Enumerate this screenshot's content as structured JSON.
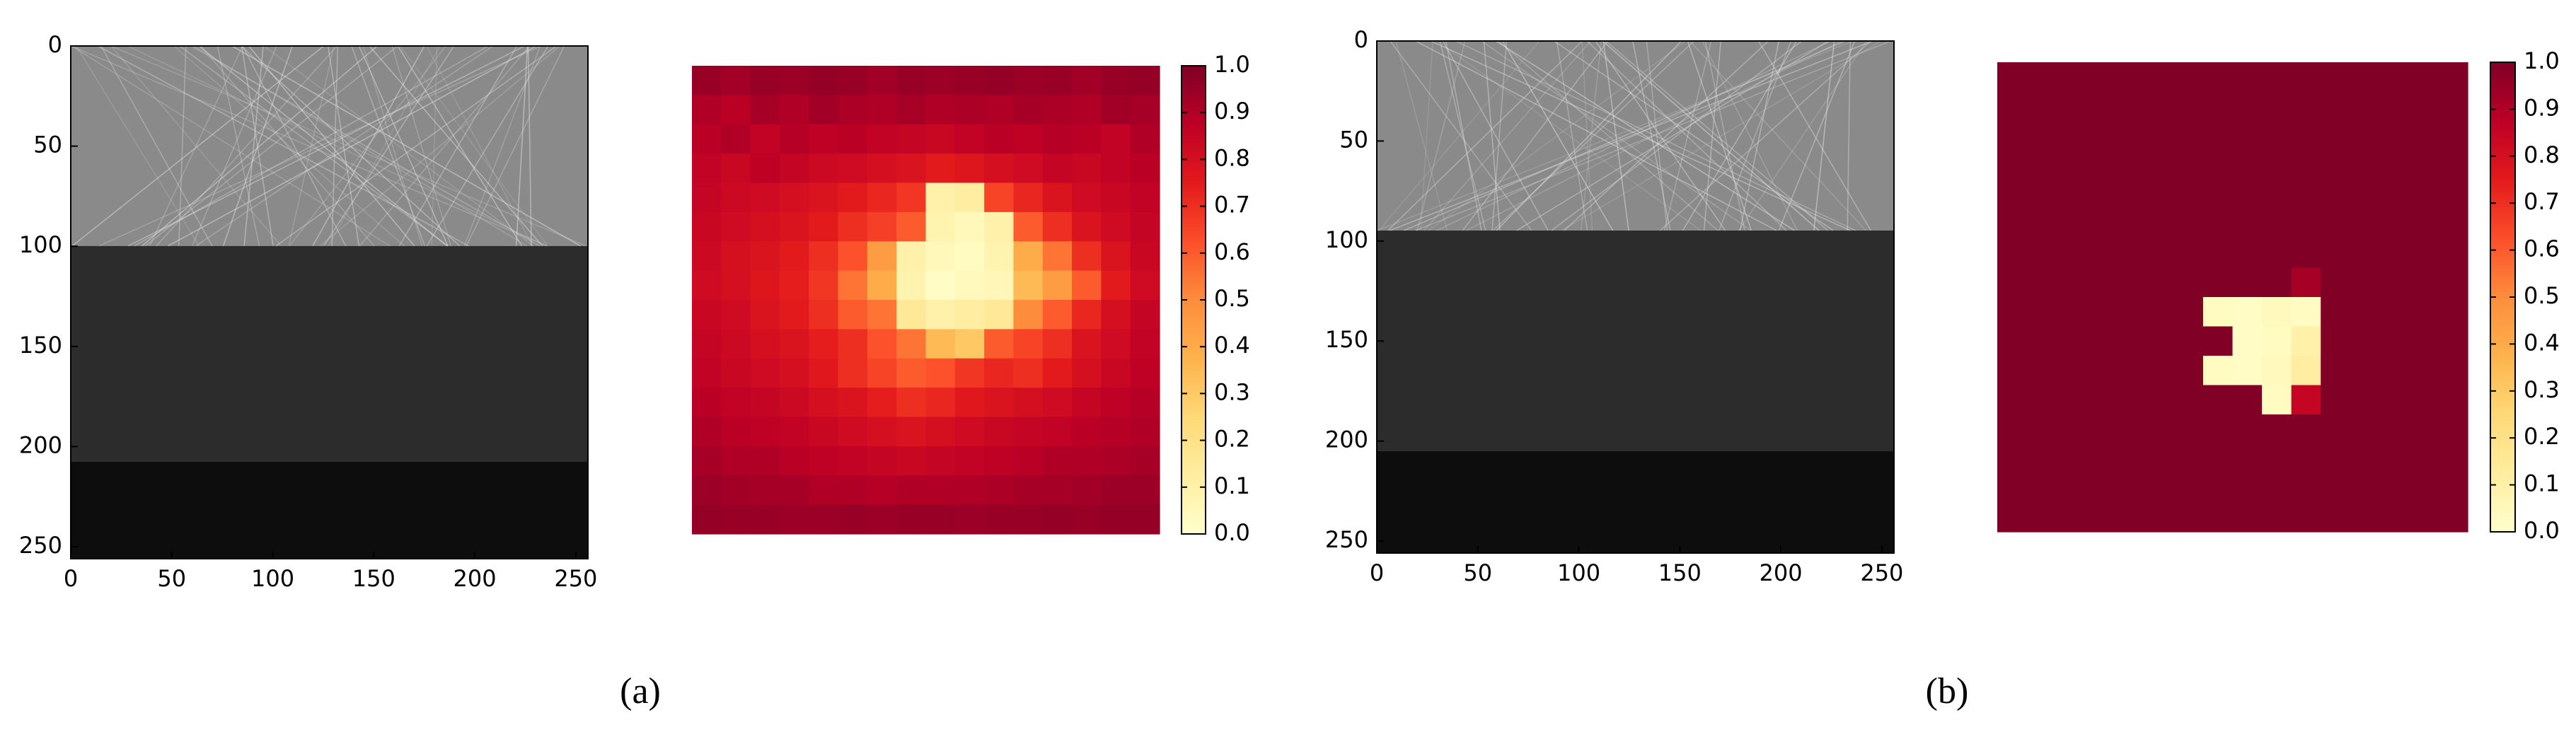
{
  "chart_data": [
    {
      "type": "image",
      "xlim": [
        0,
        256
      ],
      "ylim": [
        256,
        0
      ],
      "xticks": [
        0,
        50,
        100,
        150,
        200,
        250
      ],
      "yticks": [
        0,
        50,
        100,
        150,
        200,
        250
      ],
      "caption": "(a)"
    },
    {
      "type": "heatmap",
      "clim": [
        0,
        1
      ],
      "colormap": [
        "#ffffcc",
        "#ffeda0",
        "#fed976",
        "#feb24c",
        "#fd8d3c",
        "#fc4e2a",
        "#e31a1c",
        "#bd0026",
        "#800026"
      ],
      "cticks": [
        {
          "value": 0,
          "label": "0.0"
        },
        {
          "value": 0.1,
          "label": "0.1"
        },
        {
          "value": 0.2,
          "label": "0.2"
        },
        {
          "value": 0.3,
          "label": "0.3"
        },
        {
          "value": 0.4,
          "label": "0.4"
        },
        {
          "value": 0.5,
          "label": "0.5"
        },
        {
          "value": 0.6,
          "label": "0.6"
        },
        {
          "value": 0.7,
          "label": "0.7"
        },
        {
          "value": 0.8,
          "label": "0.8"
        },
        {
          "value": 0.9,
          "label": "0.9"
        },
        {
          "value": 1,
          "label": "1.0"
        }
      ],
      "values": [
        [
          0.95,
          0.93,
          0.95,
          0.94,
          0.96,
          0.95,
          0.93,
          0.95,
          0.94,
          0.95,
          0.96,
          0.94,
          0.95,
          0.93,
          0.95,
          0.96
        ],
        [
          0.9,
          0.88,
          0.92,
          0.9,
          0.93,
          0.91,
          0.9,
          0.92,
          0.9,
          0.91,
          0.9,
          0.92,
          0.91,
          0.9,
          0.93,
          0.92
        ],
        [
          0.88,
          0.9,
          0.86,
          0.89,
          0.87,
          0.88,
          0.86,
          0.85,
          0.84,
          0.86,
          0.88,
          0.87,
          0.89,
          0.88,
          0.86,
          0.9
        ],
        [
          0.86,
          0.84,
          0.87,
          0.85,
          0.83,
          0.82,
          0.8,
          0.78,
          0.75,
          0.77,
          0.8,
          0.82,
          0.85,
          0.84,
          0.86,
          0.88
        ],
        [
          0.85,
          0.83,
          0.82,
          0.8,
          0.78,
          0.75,
          0.72,
          0.68,
          0.1,
          0.12,
          0.65,
          0.72,
          0.78,
          0.82,
          0.84,
          0.86
        ],
        [
          0.84,
          0.82,
          0.8,
          0.78,
          0.75,
          0.7,
          0.66,
          0.6,
          0.08,
          0.05,
          0.1,
          0.6,
          0.7,
          0.78,
          0.82,
          0.85
        ],
        [
          0.83,
          0.8,
          0.78,
          0.75,
          0.7,
          0.62,
          0.45,
          0.1,
          0.05,
          0.03,
          0.08,
          0.4,
          0.55,
          0.7,
          0.78,
          0.84
        ],
        [
          0.82,
          0.8,
          0.77,
          0.74,
          0.68,
          0.55,
          0.4,
          0.08,
          0.02,
          0.04,
          0.06,
          0.35,
          0.45,
          0.6,
          0.75,
          0.82
        ],
        [
          0.84,
          0.82,
          0.78,
          0.75,
          0.7,
          0.6,
          0.55,
          0.15,
          0.1,
          0.12,
          0.15,
          0.5,
          0.6,
          0.72,
          0.8,
          0.85
        ],
        [
          0.85,
          0.83,
          0.8,
          0.78,
          0.74,
          0.7,
          0.62,
          0.55,
          0.35,
          0.3,
          0.6,
          0.65,
          0.7,
          0.78,
          0.82,
          0.86
        ],
        [
          0.86,
          0.84,
          0.82,
          0.8,
          0.76,
          0.7,
          0.65,
          0.6,
          0.62,
          0.68,
          0.72,
          0.7,
          0.75,
          0.8,
          0.84,
          0.87
        ],
        [
          0.88,
          0.86,
          0.85,
          0.83,
          0.8,
          0.78,
          0.74,
          0.7,
          0.72,
          0.76,
          0.78,
          0.8,
          0.82,
          0.85,
          0.87,
          0.89
        ],
        [
          0.9,
          0.88,
          0.87,
          0.86,
          0.84,
          0.82,
          0.8,
          0.78,
          0.8,
          0.82,
          0.84,
          0.85,
          0.86,
          0.88,
          0.89,
          0.9
        ],
        [
          0.92,
          0.9,
          0.9,
          0.88,
          0.87,
          0.86,
          0.85,
          0.84,
          0.85,
          0.86,
          0.87,
          0.88,
          0.9,
          0.9,
          0.91,
          0.92
        ],
        [
          0.94,
          0.93,
          0.92,
          0.92,
          0.9,
          0.9,
          0.89,
          0.9,
          0.9,
          0.9,
          0.91,
          0.92,
          0.92,
          0.93,
          0.94,
          0.94
        ],
        [
          0.96,
          0.95,
          0.95,
          0.94,
          0.94,
          0.95,
          0.94,
          0.95,
          0.95,
          0.94,
          0.95,
          0.95,
          0.96,
          0.95,
          0.96,
          0.96
        ]
      ]
    },
    {
      "type": "image",
      "xlim": [
        0,
        256
      ],
      "ylim": [
        256,
        0
      ],
      "xticks": [
        0,
        50,
        100,
        150,
        200,
        250
      ],
      "yticks": [
        0,
        50,
        100,
        150,
        200,
        250
      ],
      "caption": "(b)"
    },
    {
      "type": "heatmap",
      "clim": [
        0,
        1
      ],
      "colormap": [
        "#ffffcc",
        "#ffeda0",
        "#fed976",
        "#feb24c",
        "#fd8d3c",
        "#fc4e2a",
        "#e31a1c",
        "#bd0026",
        "#800026"
      ],
      "cticks": [
        {
          "value": 0,
          "label": "0.0"
        },
        {
          "value": 0.1,
          "label": "0.1"
        },
        {
          "value": 0.2,
          "label": "0.2"
        },
        {
          "value": 0.3,
          "label": "0.3"
        },
        {
          "value": 0.4,
          "label": "0.4"
        },
        {
          "value": 0.5,
          "label": "0.5"
        },
        {
          "value": 0.6,
          "label": "0.6"
        },
        {
          "value": 0.7,
          "label": "0.7"
        },
        {
          "value": 0.8,
          "label": "0.8"
        },
        {
          "value": 0.9,
          "label": "0.9"
        },
        {
          "value": 1,
          "label": "1.0"
        }
      ],
      "values": [
        [
          1,
          1,
          1,
          1,
          1,
          1,
          1,
          1,
          1,
          1,
          1,
          1,
          1,
          1,
          1,
          1
        ],
        [
          1,
          1,
          1,
          1,
          1,
          1,
          1,
          1,
          1,
          1,
          1,
          1,
          1,
          1,
          1,
          1
        ],
        [
          1,
          1,
          1,
          1,
          1,
          1,
          1,
          1,
          1,
          1,
          1,
          1,
          1,
          1,
          1,
          1
        ],
        [
          1,
          1,
          1,
          1,
          1,
          1,
          1,
          1,
          1,
          1,
          1,
          1,
          1,
          1,
          1,
          1
        ],
        [
          1,
          1,
          1,
          1,
          1,
          1,
          1,
          1,
          1,
          1,
          1,
          1,
          1,
          1,
          1,
          1
        ],
        [
          1,
          1,
          1,
          1,
          1,
          1,
          1,
          1,
          1,
          1,
          1,
          1,
          1,
          1,
          1,
          1
        ],
        [
          1,
          1,
          1,
          1,
          1,
          1,
          1,
          1,
          1,
          1,
          1,
          1,
          1,
          1,
          1,
          1
        ],
        [
          1,
          1,
          1,
          1,
          1,
          1,
          1,
          1,
          1,
          1,
          0.92,
          1,
          1,
          1,
          1,
          1
        ],
        [
          1,
          1,
          1,
          1,
          1,
          1,
          1,
          0.03,
          0.02,
          0.04,
          0.03,
          1,
          1,
          1,
          1,
          1
        ],
        [
          1,
          1,
          1,
          1,
          1,
          1,
          1,
          1,
          0.02,
          0.03,
          0.1,
          1,
          1,
          1,
          1,
          1
        ],
        [
          1,
          1,
          1,
          1,
          1,
          1,
          1,
          0.03,
          0.02,
          0.04,
          0.12,
          1,
          1,
          1,
          1,
          1
        ],
        [
          1,
          1,
          1,
          1,
          1,
          1,
          1,
          1,
          1,
          0.03,
          0.85,
          1,
          1,
          1,
          1,
          1
        ],
        [
          1,
          1,
          1,
          1,
          1,
          1,
          1,
          1,
          1,
          1,
          1,
          1,
          1,
          1,
          1,
          1
        ],
        [
          1,
          1,
          1,
          1,
          1,
          1,
          1,
          1,
          1,
          1,
          1,
          1,
          1,
          1,
          1,
          1
        ],
        [
          1,
          1,
          1,
          1,
          1,
          1,
          1,
          1,
          1,
          1,
          1,
          1,
          1,
          1,
          1,
          1
        ],
        [
          1,
          1,
          1,
          1,
          1,
          1,
          1,
          1,
          1,
          1,
          1,
          1,
          1,
          1,
          1,
          1
        ]
      ]
    }
  ]
}
